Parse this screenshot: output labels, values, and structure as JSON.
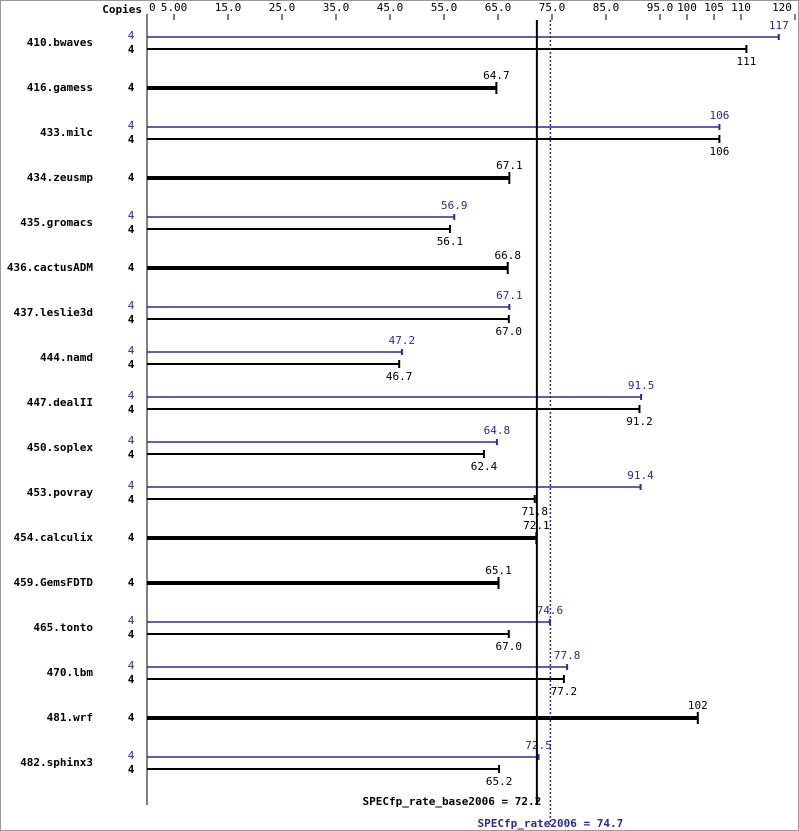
{
  "chart_data": {
    "type": "bar",
    "copies_header": "Copies",
    "categories": [
      "410.bwaves",
      "416.gamess",
      "433.milc",
      "434.zeusmp",
      "435.gromacs",
      "436.cactusADM",
      "437.leslie3d",
      "444.namd",
      "447.dealII",
      "450.soplex",
      "453.povray",
      "454.calculix",
      "459.GemsFDTD",
      "465.tonto",
      "470.lbm",
      "481.wrf",
      "482.sphinx3"
    ],
    "peak_copies": [
      4,
      null,
      4,
      null,
      4,
      null,
      4,
      4,
      4,
      4,
      4,
      null,
      null,
      4,
      4,
      null,
      4
    ],
    "base_copies": [
      4,
      4,
      4,
      4,
      4,
      4,
      4,
      4,
      4,
      4,
      4,
      4,
      4,
      4,
      4,
      4,
      4
    ],
    "peak_values": [
      117,
      null,
      106,
      null,
      56.9,
      null,
      67.1,
      47.2,
      91.5,
      64.8,
      91.4,
      null,
      null,
      74.6,
      77.8,
      null,
      72.5
    ],
    "peak_value_labels": [
      "117",
      null,
      "106",
      null,
      "56.9",
      null,
      "67.1",
      "47.2",
      "91.5",
      "64.8",
      "91.4",
      null,
      null,
      "74.6",
      "77.8",
      null,
      "72.5"
    ],
    "base_values": [
      111,
      64.7,
      106,
      67.1,
      56.1,
      66.8,
      67.0,
      46.7,
      91.2,
      62.4,
      71.8,
      72.1,
      65.1,
      67.0,
      77.2,
      102,
      65.2
    ],
    "base_value_labels": [
      "111",
      "64.7",
      "106",
      "67.1",
      "56.1",
      "66.8",
      "67.0",
      "46.7",
      "91.2",
      "62.4",
      "71.8",
      "72.1",
      "65.1",
      "67.0",
      "77.2",
      "102",
      "65.2"
    ],
    "peak_color": "#2a2a9a",
    "base_color": "#000000",
    "xlim": [
      0,
      120
    ],
    "xticks": [
      0,
      {
        "value": 5,
        "label": "5.00"
      },
      {
        "value": 15,
        "label": "15.0"
      },
      {
        "value": 25,
        "label": "25.0"
      },
      {
        "value": 35,
        "label": "35.0"
      },
      {
        "value": 45,
        "label": "45.0"
      },
      {
        "value": 55,
        "label": "55.0"
      },
      {
        "value": 65,
        "label": "65.0"
      },
      {
        "value": 75,
        "label": "75.0"
      },
      {
        "value": 85,
        "label": "85.0"
      },
      {
        "value": 95,
        "label": "95.0"
      },
      100,
      105,
      110,
      120
    ],
    "base_reference": {
      "value": 72.2,
      "label": "SPECfp_rate_base2006 = 72.2"
    },
    "peak_reference": {
      "value": 74.7,
      "label": "SPECfp_rate2006 = 74.7"
    }
  }
}
